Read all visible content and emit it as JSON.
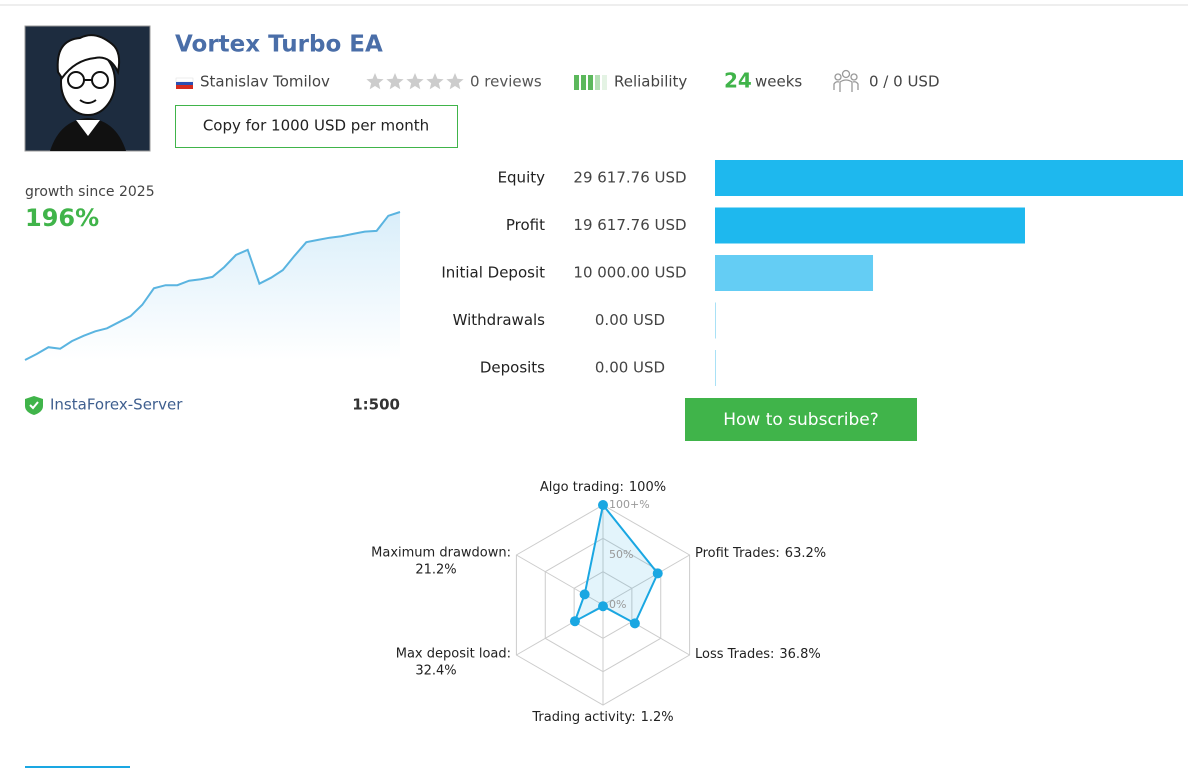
{
  "header": {
    "title": "Vortex Turbo EA",
    "author": "Stanislav Tomilov",
    "reviews": "0 reviews",
    "reliability": "Reliability",
    "weeks": 24,
    "weeks_label": "weeks",
    "subscribers": "0 / 0 USD",
    "copy_button": "Copy for 1000 USD per month"
  },
  "growth": {
    "label": "growth since 2025",
    "value": "196%",
    "color": "#5ab4e0",
    "curve": [
      0,
      8,
      17,
      15,
      25,
      32,
      38,
      42,
      50,
      58,
      73,
      95,
      99,
      99,
      105,
      107,
      110,
      123,
      139,
      146,
      101,
      109,
      119,
      138,
      156,
      159,
      162,
      164,
      167,
      170,
      171,
      191,
      196
    ],
    "server": "InstaForex-Server",
    "leverage": "1:500"
  },
  "balances": {
    "rows": [
      {
        "label": "Equity",
        "value": 29617.76,
        "value_label": "29 617.76 USD",
        "color": "#1eb8ee"
      },
      {
        "label": "Profit",
        "value": 19617.76,
        "value_label": "19 617.76 USD",
        "color": "#1eb8ee"
      },
      {
        "label": "Initial Deposit",
        "value": 10000.0,
        "value_label": "10 000.00 USD",
        "color": "#64cdf4"
      },
      {
        "label": "Withdrawals",
        "value": 0.0,
        "value_label": "0.00 USD",
        "color": "#a9e1f6"
      },
      {
        "label": "Deposits",
        "value": 0.0,
        "value_label": "0.00 USD",
        "color": "#a9e1f6"
      }
    ]
  },
  "subscribe_button": "How to subscribe?",
  "radar": {
    "color": "#1aa7e2",
    "ticks": [
      {
        "value": 100,
        "label": "100+%"
      },
      {
        "value": 50,
        "label": "50%"
      },
      {
        "value": 0,
        "label": "0%"
      }
    ],
    "axes": [
      {
        "name": "Algo trading:",
        "value": 100,
        "value_label": "100%"
      },
      {
        "name": "Profit Trades:",
        "value": 63.2,
        "value_label": "63.2%"
      },
      {
        "name": "Loss Trades:",
        "value": 36.8,
        "value_label": "36.8%"
      },
      {
        "name": "Trading activity:",
        "value": 1.2,
        "value_label": "1.2%"
      },
      {
        "name": "Max deposit load:",
        "value": 32.4,
        "value_label": "32.4%"
      },
      {
        "name": "Maximum drawdown:",
        "value": 21.2,
        "value_label": "21.2%"
      }
    ]
  }
}
